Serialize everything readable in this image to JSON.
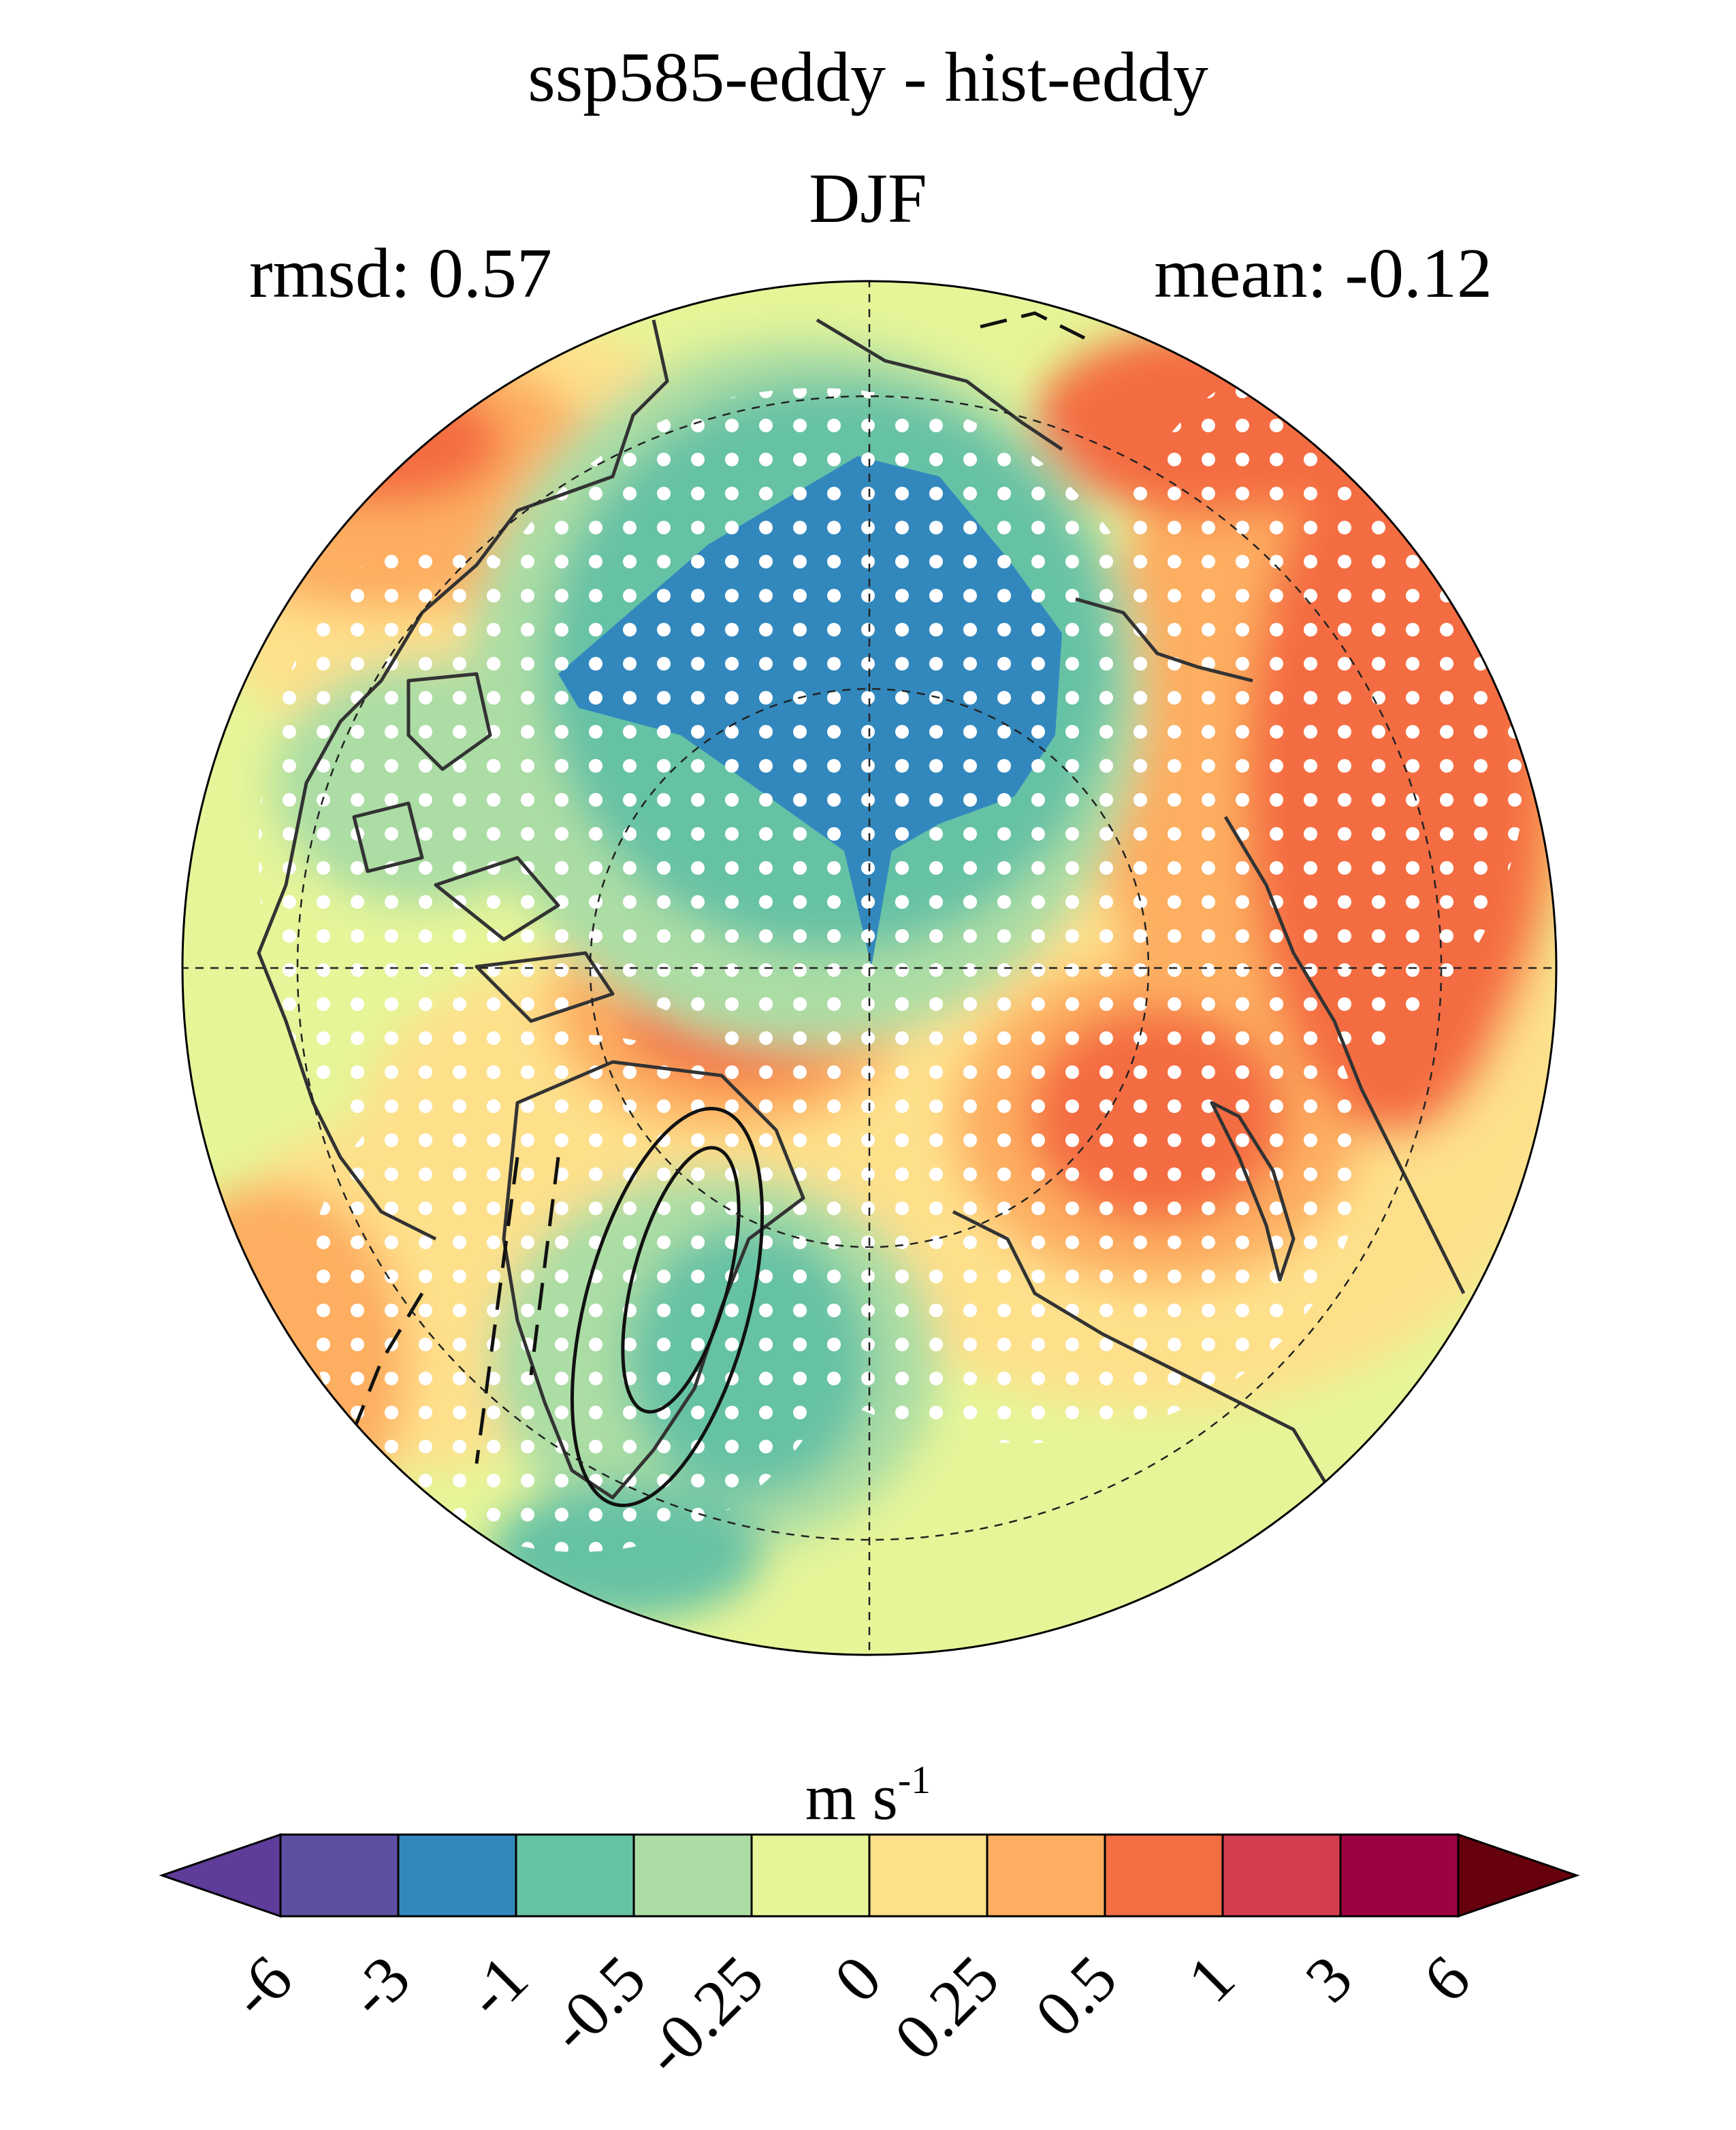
{
  "title": "ssp585-eddy - hist-eddy",
  "season": "DJF",
  "stats": {
    "rmsd": "rmsd: 0.57",
    "mean": "mean: -0.12"
  },
  "unit": {
    "base": "m s",
    "exponent": "-1"
  },
  "colorbar": {
    "levels": [
      "-6",
      "-3",
      "-1",
      "-0.5",
      "-0.25",
      "0",
      "0.25",
      "0.5",
      "1",
      "3",
      "6"
    ],
    "colors": [
      "#5e4fa2",
      "#3288bd",
      "#66c2a5",
      "#abdda4",
      "#e6f598",
      "#fee08b",
      "#fdae61",
      "#f46d43",
      "#d53e4f",
      "#9e0142"
    ],
    "under_color": "#5e3c99",
    "over_color": "#67000d"
  },
  "map": {
    "projection": "north-polar-stereographic",
    "stippling": "significance dots (white)",
    "contours": "black lines (solid positive, dashed negative)"
  }
}
